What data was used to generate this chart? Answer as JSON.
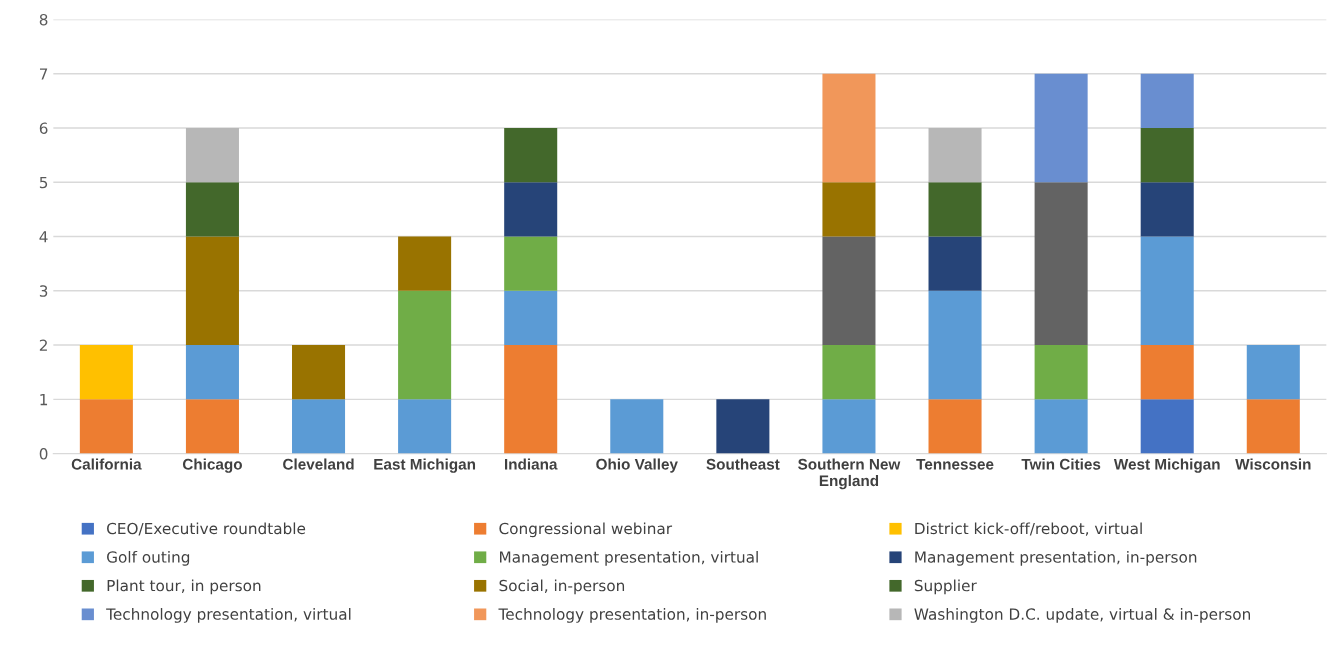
{
  "chart_data": {
    "type": "bar",
    "stacked": true,
    "categories": [
      "California",
      "Chicago",
      "Cleveland",
      "East Michigan",
      "Indiana",
      "Ohio Valley",
      "Southeast",
      "Southern New\nEngland",
      "Tennessee",
      "Twin Cities",
      "West Michigan",
      "Wisconsin"
    ],
    "series": [
      {
        "name": "CEO/Executive roundtable",
        "color": "#4472c4",
        "values": [
          0,
          0,
          0,
          0,
          0,
          0,
          0,
          0,
          0,
          0,
          1,
          0
        ]
      },
      {
        "name": "Congressional webinar",
        "color": "#ed7d31",
        "values": [
          1,
          1,
          0,
          0,
          2,
          0,
          0,
          0,
          1,
          0,
          1,
          1
        ]
      },
      {
        "name": "District kick-off/reboot, virtual",
        "color": "#ffc000",
        "values": [
          1,
          0,
          0,
          0,
          0,
          0,
          0,
          0,
          0,
          0,
          0,
          0
        ]
      },
      {
        "name": "Golf outing",
        "color": "#5b9bd5",
        "values": [
          0,
          1,
          1,
          1,
          1,
          1,
          0,
          1,
          2,
          1,
          2,
          1
        ]
      },
      {
        "name": "Management presentation, virtual",
        "color": "#70ad47",
        "values": [
          0,
          0,
          0,
          2,
          1,
          0,
          0,
          1,
          0,
          1,
          0,
          0
        ]
      },
      {
        "name": "Management presentation, in-person",
        "color": "#264478",
        "values": [
          0,
          0,
          0,
          0,
          1,
          0,
          1,
          0,
          1,
          0,
          1,
          0
        ]
      },
      {
        "name": "Plant tour, in person",
        "color": "#43682b",
        "values": [
          0,
          0,
          0,
          0,
          0,
          0,
          0,
          0,
          0,
          0,
          0,
          0
        ]
      },
      {
        "color": "#636363",
        "values": [
          0,
          0,
          0,
          0,
          0,
          0,
          0,
          2,
          0,
          3,
          0,
          0
        ]
      },
      {
        "name": "Social, in-person",
        "color": "#997300",
        "values": [
          0,
          2,
          1,
          1,
          0,
          0,
          0,
          1,
          0,
          0,
          0,
          0
        ]
      },
      {
        "name": "Supplier",
        "color": "#43682b",
        "values": [
          0,
          1,
          0,
          0,
          1,
          0,
          0,
          0,
          1,
          0,
          1,
          0
        ]
      },
      {
        "name": "Technology presentation, virtual",
        "color": "#698ed0",
        "values": [
          0,
          0,
          0,
          0,
          0,
          0,
          0,
          0,
          0,
          2,
          1,
          0
        ]
      },
      {
        "name": "Technology presentation, in-person",
        "color": "#f1975a",
        "values": [
          0,
          0,
          0,
          0,
          0,
          0,
          0,
          2,
          0,
          0,
          0,
          0
        ]
      },
      {
        "name": "Washington D.C. update, virtual & in-person",
        "color": "#b7b7b7",
        "values": [
          0,
          1,
          0,
          0,
          0,
          0,
          0,
          0,
          1,
          0,
          0,
          0
        ]
      }
    ],
    "ylim": [
      0,
      8
    ],
    "yticks": [
      0,
      1,
      2,
      3,
      4,
      5,
      6,
      7,
      8
    ],
    "grid": "y",
    "legend": "bottom"
  }
}
